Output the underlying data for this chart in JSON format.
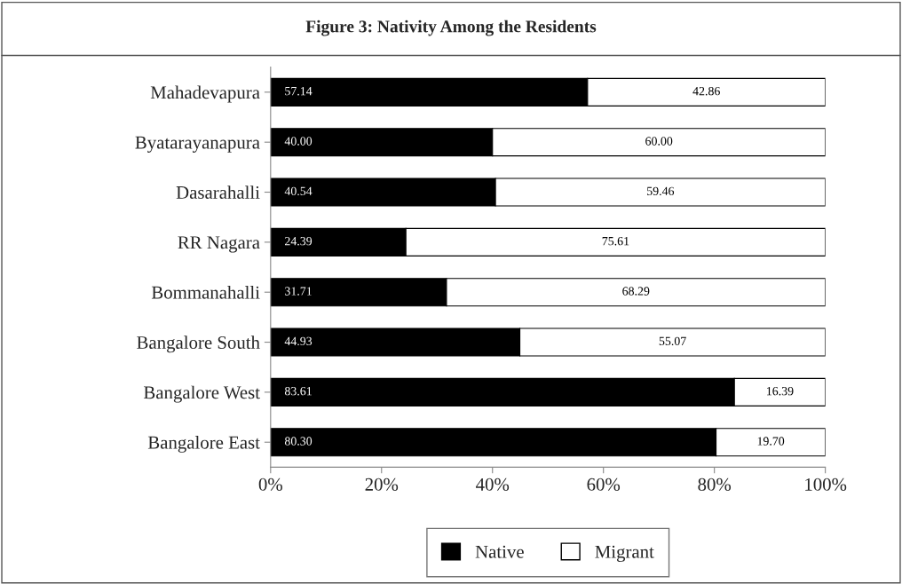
{
  "chart_data": {
    "type": "bar",
    "orientation": "horizontal",
    "stacked": true,
    "title": "Figure 3: Nativity Among the Residents",
    "categories": [
      "Mahadevapura",
      "Byatarayanapura",
      "Dasarahalli",
      "RR Nagara",
      "Bommanahalli",
      "Bangalore South",
      "Bangalore West",
      "Bangalore East"
    ],
    "series": [
      {
        "name": "Native",
        "color": "#000000",
        "values": [
          57.14,
          40.0,
          40.54,
          24.39,
          31.71,
          44.93,
          83.61,
          80.3
        ],
        "value_labels": [
          "57.14",
          "40.00",
          "40.54",
          "24.39",
          "31.71",
          "44.93",
          "83.61",
          "80.30"
        ]
      },
      {
        "name": "Migrant",
        "color": "#ffffff",
        "values": [
          42.86,
          60.0,
          59.46,
          75.61,
          68.29,
          55.07,
          16.39,
          19.7
        ],
        "value_labels": [
          "42.86",
          "60.00",
          "59.46",
          "75.61",
          "68.29",
          "55.07",
          "16.39",
          "19.70"
        ]
      }
    ],
    "xlim": [
      0,
      100
    ],
    "xticks": [
      {
        "value": 0,
        "label": "0%"
      },
      {
        "value": 20,
        "label": "20%"
      },
      {
        "value": 40,
        "label": "40%"
      },
      {
        "value": 60,
        "label": "60%"
      },
      {
        "value": 80,
        "label": "80%"
      },
      {
        "value": 100,
        "label": "100%"
      }
    ],
    "grid": false,
    "legend": "bottom"
  }
}
